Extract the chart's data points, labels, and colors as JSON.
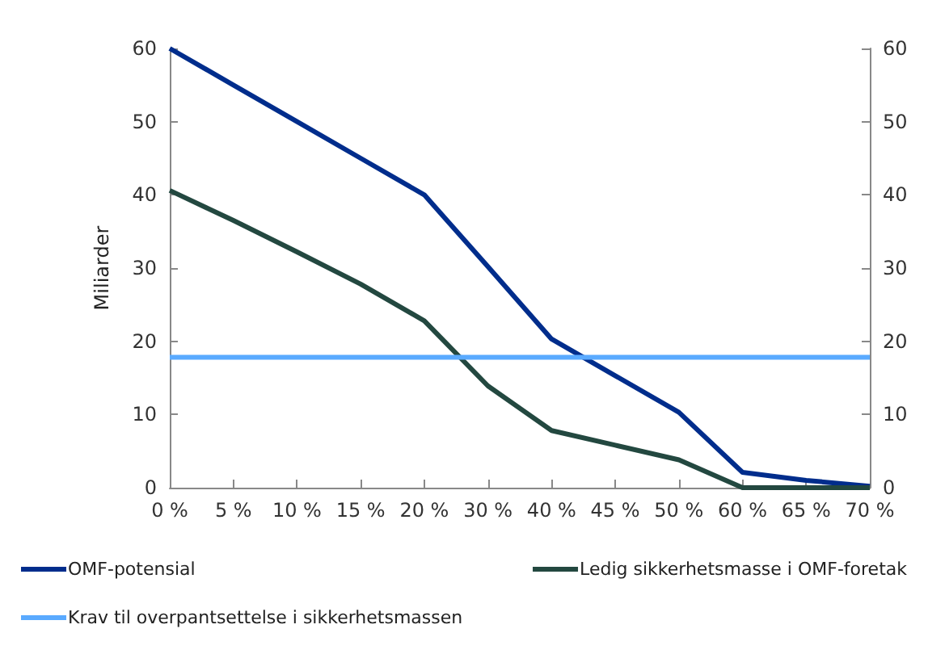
{
  "chart_data": {
    "type": "line",
    "ylabel": "Miliarder",
    "categories": [
      "0 %",
      "5 %",
      "10 %",
      "15 %",
      "20 %",
      "30 %",
      "40 %",
      "45 %",
      "50 %",
      "60 %",
      "65 %",
      "70 %"
    ],
    "series": [
      {
        "name": "OMF-potensial",
        "color": "#002d8c",
        "values": [
          60,
          55,
          50,
          45,
          40,
          30.2,
          20.3,
          15.3,
          10.3,
          2.1,
          1.0,
          0.2
        ]
      },
      {
        "name": "Ledig sikkerhetsmasse i OMF-foretak",
        "color": "#234840",
        "values": [
          40.6,
          36.5,
          32.2,
          27.8,
          22.8,
          13.9,
          7.8,
          5.8,
          3.8,
          0,
          0,
          0
        ]
      },
      {
        "name": "Krav til overpantsettelse i sikkerhetsmassen",
        "color": "#5aaaff",
        "values": [
          17.8,
          17.8,
          17.8,
          17.8,
          17.8,
          17.8,
          17.8,
          17.8,
          17.8,
          17.8,
          17.8,
          17.8
        ]
      }
    ],
    "ylim": [
      0,
      60
    ],
    "yticks": [
      0,
      10,
      20,
      30,
      40,
      50,
      60
    ],
    "y2lim": [
      0,
      60
    ],
    "y2ticks": [
      0,
      10,
      20,
      30,
      40,
      50,
      60
    ],
    "grid": false,
    "legend": "bottom",
    "marker": "none",
    "line_style": "solid"
  }
}
